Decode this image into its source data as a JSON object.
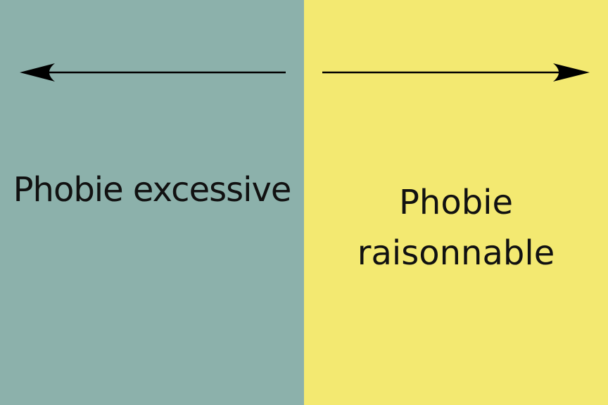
{
  "colors": {
    "left_panel": "#8cb1ab",
    "right_panel": "#f3e971",
    "arrow": "#000000"
  },
  "left": {
    "label": "Phobie excessive",
    "arrow_direction": "left"
  },
  "right": {
    "label": "Phobie\nraisonnable",
    "arrow_direction": "right"
  }
}
